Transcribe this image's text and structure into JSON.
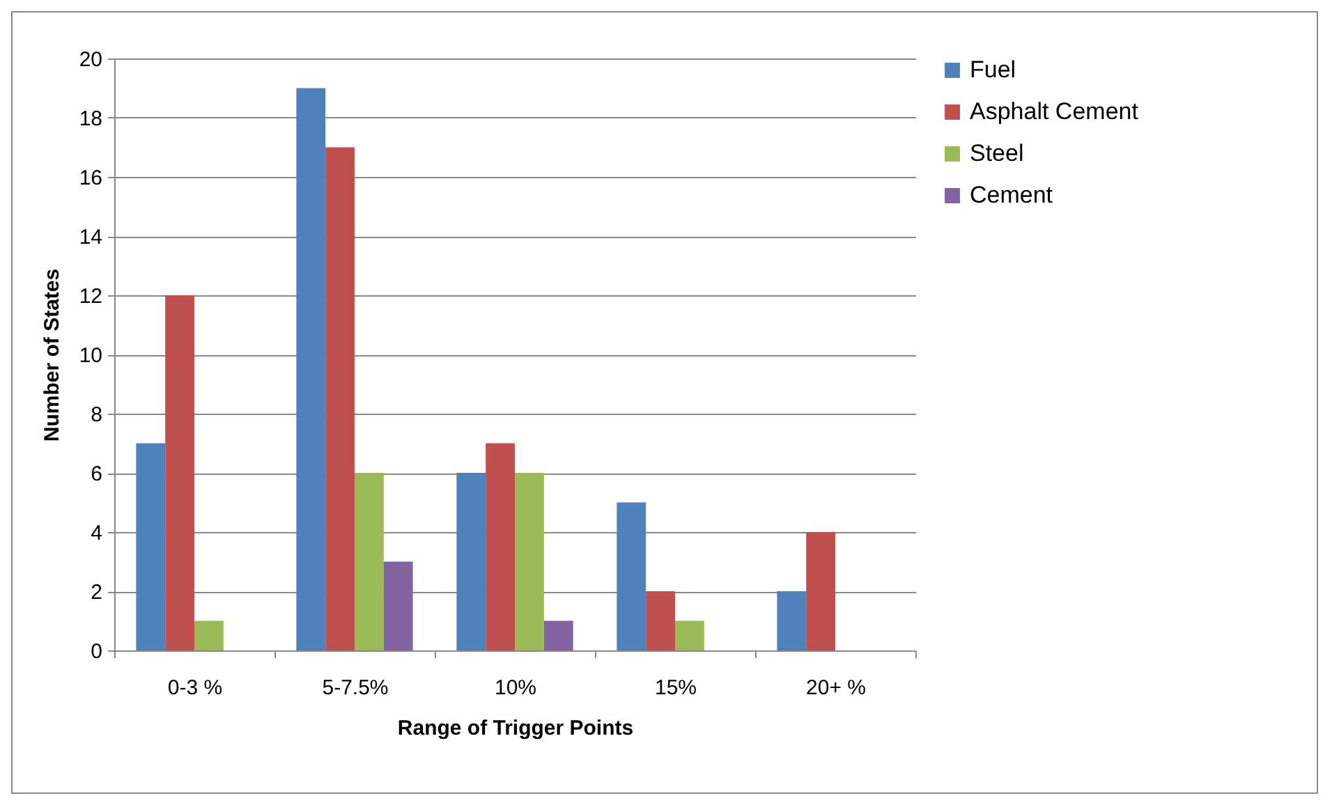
{
  "chart_data": {
    "type": "bar",
    "xlabel": "Range of Trigger Points",
    "ylabel": "Number of States",
    "categories": [
      "0-3 %",
      "5-7.5%",
      "10%",
      "15%",
      "20+ %"
    ],
    "series": [
      {
        "name": "Fuel",
        "color": "#4f81bd",
        "values": [
          7,
          19,
          6,
          5,
          2
        ]
      },
      {
        "name": "Asphalt Cement",
        "color": "#c0504d",
        "values": [
          12,
          17,
          7,
          2,
          4
        ]
      },
      {
        "name": "Steel",
        "color": "#9bbb59",
        "values": [
          1,
          6,
          6,
          1,
          0
        ]
      },
      {
        "name": "Cement",
        "color": "#8064a2",
        "values": [
          0,
          3,
          1,
          0,
          0
        ]
      }
    ],
    "ylim": [
      0,
      20
    ],
    "yticks": [
      0,
      2,
      4,
      6,
      8,
      10,
      12,
      14,
      16,
      18,
      20
    ],
    "grid": "y",
    "legend": "right"
  }
}
